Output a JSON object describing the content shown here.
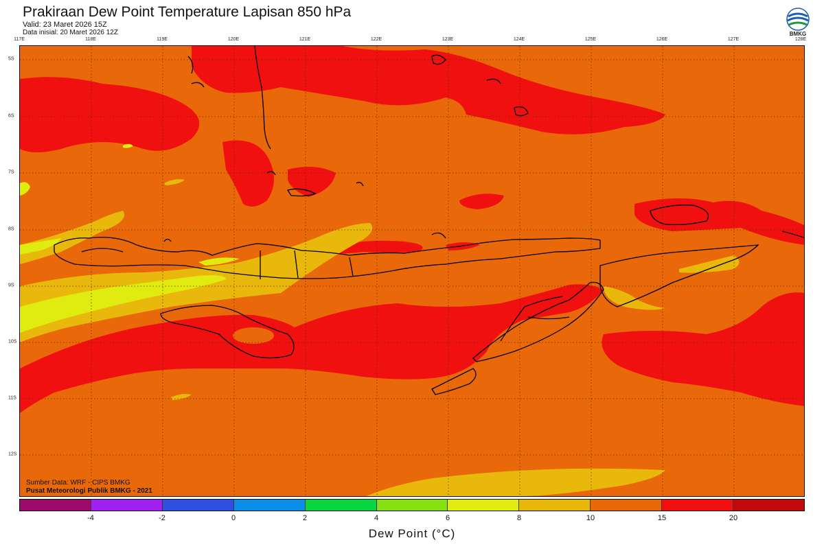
{
  "header": {
    "title": "Prakiraan Dew Point Temperature Lapisan 850 hPa",
    "valid": "Valid: 23 Maret 2026 15Z",
    "initial": "Data inisial: 20 Maret 2026 12Z"
  },
  "logo": {
    "text": "BMKG",
    "icon": "bmkg-logo-icon"
  },
  "map": {
    "lon_labels": [
      "117E",
      "118E",
      "119E",
      "120E",
      "121E",
      "122E",
      "123E",
      "124E",
      "125E",
      "126E",
      "127E",
      "128E"
    ],
    "lat_labels": [
      "5S",
      "6S",
      "7S",
      "8S",
      "9S",
      "10S",
      "11S",
      "12S"
    ],
    "source": "Sumber Data: WRF - CIPS BMKG",
    "agency": "Pusat Meteorologi Publik BMKG - 2021"
  },
  "colorbar": {
    "colors": [
      "#9b0a6b",
      "#a020f0",
      "#2e4fe0",
      "#0a8ee8",
      "#07d640",
      "#86e010",
      "#e0ec10",
      "#e8b80c",
      "#e8680a",
      "#f01010",
      "#c00a0a"
    ],
    "ticks": [
      "-4",
      "-2",
      "0",
      "2",
      "4",
      "6",
      "8",
      "10",
      "15",
      "20"
    ],
    "title": "Dew Point (°C)"
  }
}
